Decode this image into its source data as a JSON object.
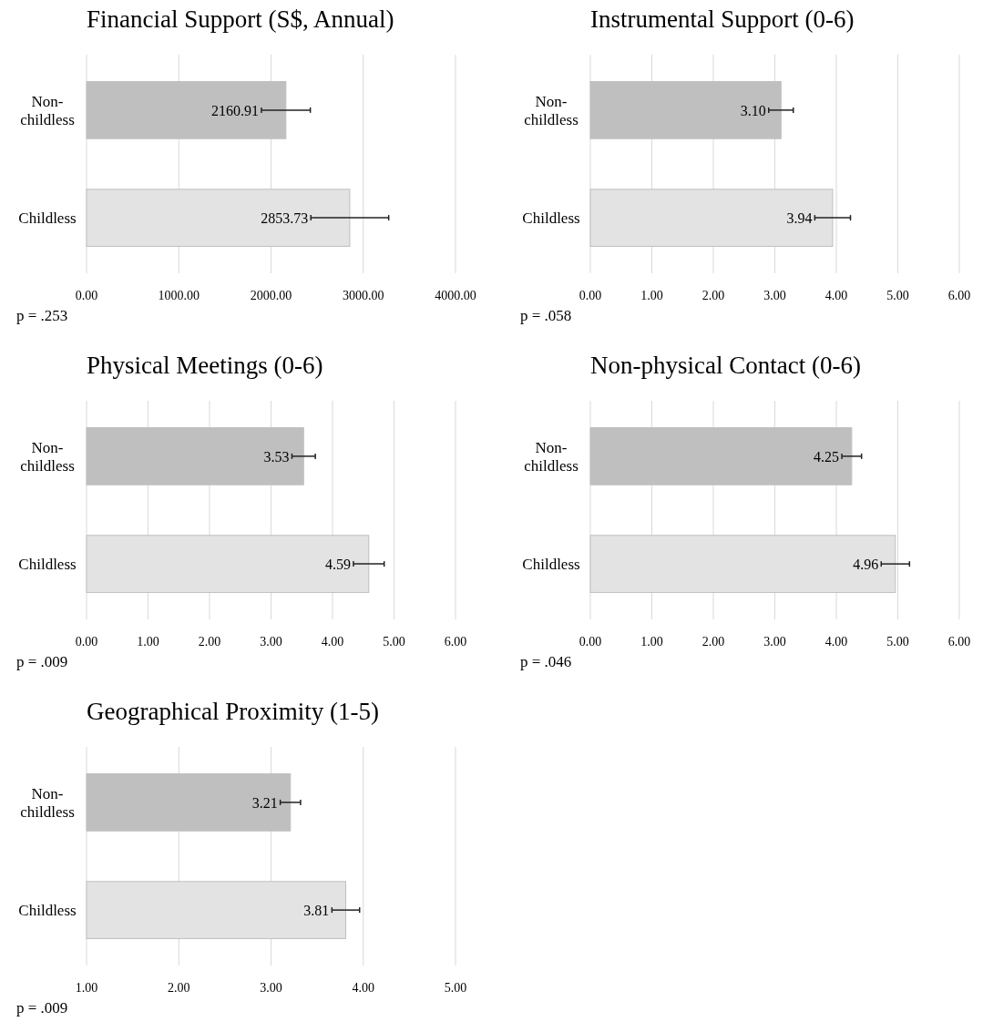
{
  "chart_data": [
    {
      "type": "bar",
      "orientation": "horizontal",
      "title": "Financial Support (S$, Annual)",
      "categories": [
        "Non-childless",
        "Childless"
      ],
      "values": [
        2160.91,
        2853.73
      ],
      "value_labels": [
        "2160.91",
        "2853.73"
      ],
      "errors": [
        265,
        422
      ],
      "colors": [
        "#bfbfbf",
        "#e3e3e3"
      ],
      "xlim": [
        0,
        4000
      ],
      "xticks": [
        {
          "value": 0,
          "label": "0.00"
        },
        {
          "value": 1000,
          "label": "1000.00"
        },
        {
          "value": 2000,
          "label": "2000.00"
        },
        {
          "value": 3000,
          "label": "3000.00"
        },
        {
          "value": 4000,
          "label": "4000.00"
        }
      ],
      "grid": "x",
      "annotations": [
        "p = .253"
      ]
    },
    {
      "type": "bar",
      "orientation": "horizontal",
      "title": "Instrumental Support (0-6)",
      "categories": [
        "Non-childless",
        "Childless"
      ],
      "values": [
        3.1,
        3.94
      ],
      "value_labels": [
        "3.10",
        "3.94"
      ],
      "errors": [
        0.2,
        0.29
      ],
      "colors": [
        "#bfbfbf",
        "#e3e3e3"
      ],
      "xlim": [
        0,
        6
      ],
      "xticks": [
        {
          "value": 0,
          "label": "0.00"
        },
        {
          "value": 1,
          "label": "1.00"
        },
        {
          "value": 2,
          "label": "2.00"
        },
        {
          "value": 3,
          "label": "3.00"
        },
        {
          "value": 4,
          "label": "4.00"
        },
        {
          "value": 5,
          "label": "5.00"
        },
        {
          "value": 6,
          "label": "6.00"
        }
      ],
      "grid": "x",
      "annotations": [
        "p = .058"
      ]
    },
    {
      "type": "bar",
      "orientation": "horizontal",
      "title": "Physical Meetings (0-6)",
      "categories": [
        "Non-childless",
        "Childless"
      ],
      "values": [
        3.53,
        4.59
      ],
      "value_labels": [
        "3.53",
        "4.59"
      ],
      "errors": [
        0.19,
        0.25
      ],
      "colors": [
        "#bfbfbf",
        "#e3e3e3"
      ],
      "xlim": [
        0,
        6
      ],
      "xticks": [
        {
          "value": 0,
          "label": "0.00"
        },
        {
          "value": 1,
          "label": "1.00"
        },
        {
          "value": 2,
          "label": "2.00"
        },
        {
          "value": 3,
          "label": "3.00"
        },
        {
          "value": 4,
          "label": "4.00"
        },
        {
          "value": 5,
          "label": "5.00"
        },
        {
          "value": 6,
          "label": "6.00"
        }
      ],
      "grid": "x",
      "annotations": [
        "p = .009"
      ]
    },
    {
      "type": "bar",
      "orientation": "horizontal",
      "title": "Non-physical Contact (0-6)",
      "categories": [
        "Non-childless",
        "Childless"
      ],
      "values": [
        4.25,
        4.96
      ],
      "value_labels": [
        "4.25",
        "4.96"
      ],
      "errors": [
        0.16,
        0.23
      ],
      "colors": [
        "#bfbfbf",
        "#e3e3e3"
      ],
      "xlim": [
        0,
        6
      ],
      "xticks": [
        {
          "value": 0,
          "label": "0.00"
        },
        {
          "value": 1,
          "label": "1.00"
        },
        {
          "value": 2,
          "label": "2.00"
        },
        {
          "value": 3,
          "label": "3.00"
        },
        {
          "value": 4,
          "label": "4.00"
        },
        {
          "value": 5,
          "label": "5.00"
        },
        {
          "value": 6,
          "label": "6.00"
        }
      ],
      "grid": "x",
      "annotations": [
        "p = .046"
      ]
    },
    {
      "type": "bar",
      "orientation": "horizontal",
      "title": "Geographical Proximity (1-5)",
      "categories": [
        "Non-childless",
        "Childless"
      ],
      "values": [
        3.21,
        3.81
      ],
      "value_labels": [
        "3.21",
        "3.81"
      ],
      "errors": [
        0.11,
        0.15
      ],
      "colors": [
        "#bfbfbf",
        "#e3e3e3"
      ],
      "xlim": [
        1,
        5
      ],
      "xticks": [
        {
          "value": 1,
          "label": "1.00"
        },
        {
          "value": 2,
          "label": "2.00"
        },
        {
          "value": 3,
          "label": "3.00"
        },
        {
          "value": 4,
          "label": "4.00"
        },
        {
          "value": 5,
          "label": "5.00"
        }
      ],
      "grid": "x",
      "annotations": [
        "p = .009"
      ]
    }
  ]
}
